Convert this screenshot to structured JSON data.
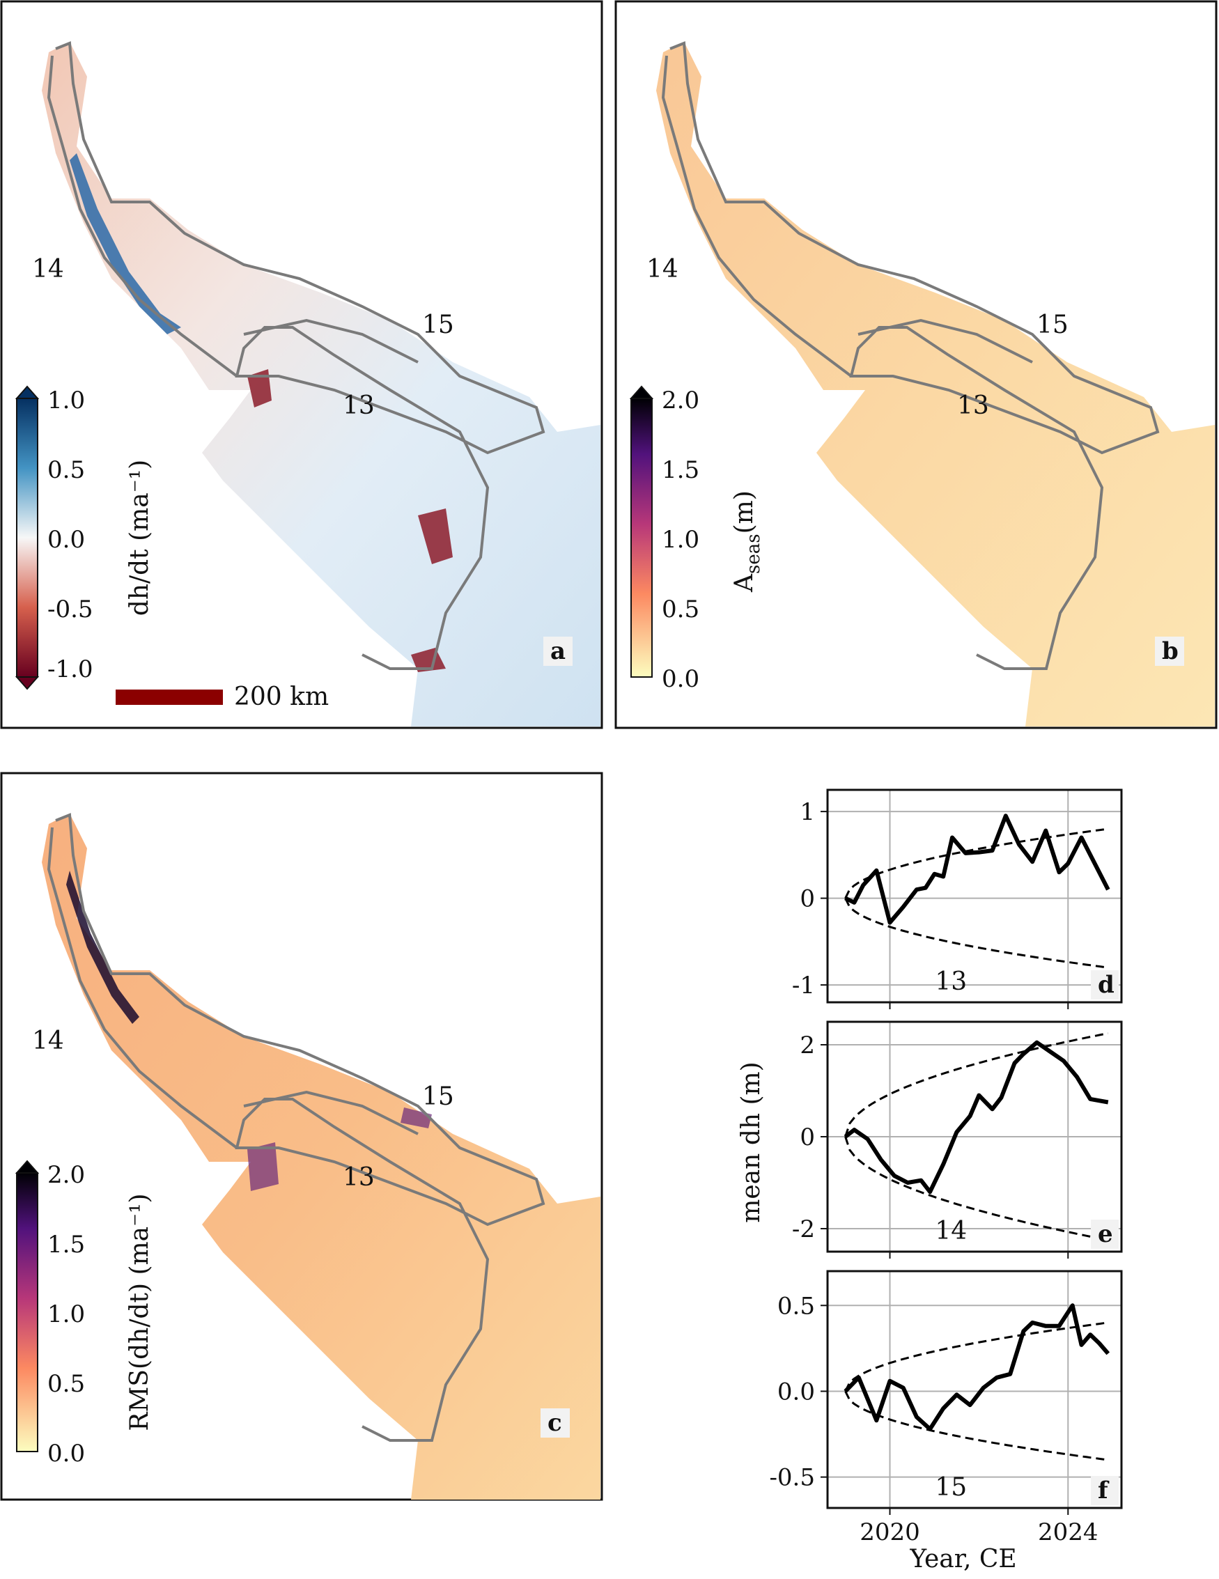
{
  "map_panels": {
    "a": {
      "letter": "a",
      "colorbar": {
        "label": "dh/dt (ma⁻¹)",
        "ticks": [
          "1.0",
          "0.5",
          "0.0",
          "-0.5",
          "-1.0"
        ],
        "range": [
          -1.0,
          1.0
        ],
        "colormap": "red-white-blue",
        "colors": [
          "#67001f",
          "#d6604d",
          "#f7f7f7",
          "#4393c3",
          "#053061"
        ]
      },
      "scalebar_label": "200 km",
      "scalebar_color": "#8b0000",
      "region_labels": [
        "14",
        "15",
        "13"
      ]
    },
    "b": {
      "letter": "b",
      "colorbar": {
        "label_main": "A",
        "label_sub": "seas",
        "label_unit": "(m)",
        "ticks": [
          "2.0",
          "1.5",
          "1.0",
          "0.5",
          "0.0"
        ],
        "range": [
          0.0,
          2.0
        ],
        "colormap": "magma-reversed",
        "colors": [
          "#fcfdbf",
          "#fc8961",
          "#b73779",
          "#51127c",
          "#000004"
        ]
      },
      "region_labels": [
        "14",
        "15",
        "13"
      ]
    },
    "c": {
      "letter": "c",
      "colorbar": {
        "label": "RMS(dh/dt) (ma⁻¹)",
        "ticks": [
          "2.0",
          "1.5",
          "1.0",
          "0.5",
          "0.0"
        ],
        "range": [
          0.0,
          2.0
        ],
        "colormap": "magma-reversed",
        "colors": [
          "#fcfdbf",
          "#fc8961",
          "#b73779",
          "#51127c",
          "#000004"
        ]
      },
      "region_labels": [
        "14",
        "15",
        "13"
      ]
    }
  },
  "ylabel": "mean dh (m)",
  "xlabel": "Year, CE",
  "chart_data": [
    {
      "type": "line",
      "panel": "d",
      "region_label": "13",
      "xlim": [
        2018.6,
        2025.2
      ],
      "ylim": [
        -1.2,
        1.25
      ],
      "yticks": [
        1,
        0,
        -1
      ],
      "ytick_labels": [
        "1",
        "0",
        "-1"
      ],
      "xticks": [
        2020,
        2024
      ],
      "xtick_labels": [],
      "grid": true,
      "series": [
        {
          "style": "solid",
          "x": [
            2019.0,
            2019.2,
            2019.4,
            2019.7,
            2020.0,
            2020.3,
            2020.6,
            2020.8,
            2021.0,
            2021.2,
            2021.4,
            2021.7,
            2022.0,
            2022.3,
            2022.6,
            2022.9,
            2023.2,
            2023.5,
            2023.8,
            2024.0,
            2024.3,
            2024.6,
            2024.9
          ],
          "y": [
            0.0,
            -0.05,
            0.15,
            0.32,
            -0.28,
            -0.1,
            0.1,
            0.12,
            0.28,
            0.25,
            0.7,
            0.52,
            0.53,
            0.55,
            0.95,
            0.62,
            0.42,
            0.78,
            0.3,
            0.4,
            0.7,
            0.4,
            0.1
          ]
        },
        {
          "style": "dashed",
          "envelope": "upper",
          "a": 0.8,
          "x0": 2019.0,
          "x1": 2024.9
        },
        {
          "style": "dashed",
          "envelope": "lower",
          "a": -0.8,
          "x0": 2019.0,
          "x1": 2024.9
        }
      ]
    },
    {
      "type": "line",
      "panel": "e",
      "region_label": "14",
      "xlim": [
        2018.6,
        2025.2
      ],
      "ylim": [
        -2.5,
        2.5
      ],
      "yticks": [
        2,
        0,
        -2
      ],
      "ytick_labels": [
        "2",
        "0",
        "-2"
      ],
      "xticks": [
        2020,
        2024
      ],
      "xtick_labels": [],
      "grid": true,
      "series": [
        {
          "style": "solid",
          "x": [
            2019.0,
            2019.2,
            2019.5,
            2019.8,
            2020.1,
            2020.4,
            2020.7,
            2020.9,
            2021.2,
            2021.5,
            2021.8,
            2022.0,
            2022.3,
            2022.5,
            2022.8,
            2023.0,
            2023.3,
            2023.6,
            2023.9,
            2024.2,
            2024.5,
            2024.9
          ],
          "y": [
            0.0,
            0.15,
            -0.05,
            -0.5,
            -0.85,
            -1.0,
            -0.95,
            -1.2,
            -0.6,
            0.1,
            0.45,
            0.9,
            0.6,
            0.85,
            1.6,
            1.8,
            2.05,
            1.85,
            1.65,
            1.3,
            0.82,
            0.75
          ]
        },
        {
          "style": "dashed",
          "envelope": "upper",
          "a": 2.25,
          "x0": 2019.0,
          "x1": 2024.9
        },
        {
          "style": "dashed",
          "envelope": "lower",
          "a": -2.25,
          "x0": 2019.0,
          "x1": 2024.9
        }
      ]
    },
    {
      "type": "line",
      "panel": "f",
      "region_label": "15",
      "xlim": [
        2018.6,
        2025.2
      ],
      "ylim": [
        -0.68,
        0.7
      ],
      "yticks": [
        0.5,
        0.0,
        -0.5
      ],
      "ytick_labels": [
        "0.5",
        "0.0",
        "-0.5"
      ],
      "xticks": [
        2020,
        2024
      ],
      "xtick_labels": [
        "2020",
        "2024"
      ],
      "grid": true,
      "series": [
        {
          "style": "solid",
          "x": [
            2019.0,
            2019.3,
            2019.7,
            2020.0,
            2020.3,
            2020.6,
            2020.9,
            2021.2,
            2021.5,
            2021.8,
            2022.1,
            2022.4,
            2022.7,
            2023.0,
            2023.2,
            2023.5,
            2023.8,
            2024.1,
            2024.3,
            2024.5,
            2024.7,
            2024.9
          ],
          "y": [
            0.0,
            0.08,
            -0.17,
            0.06,
            0.02,
            -0.15,
            -0.22,
            -0.1,
            -0.02,
            -0.08,
            0.02,
            0.08,
            0.1,
            0.35,
            0.4,
            0.38,
            0.38,
            0.5,
            0.27,
            0.33,
            0.28,
            0.22
          ]
        },
        {
          "style": "dashed",
          "envelope": "upper",
          "a": 0.4,
          "x0": 2019.0,
          "x1": 2024.9
        },
        {
          "style": "dashed",
          "envelope": "lower",
          "a": -0.4,
          "x0": 2019.0,
          "x1": 2024.9
        }
      ]
    }
  ]
}
